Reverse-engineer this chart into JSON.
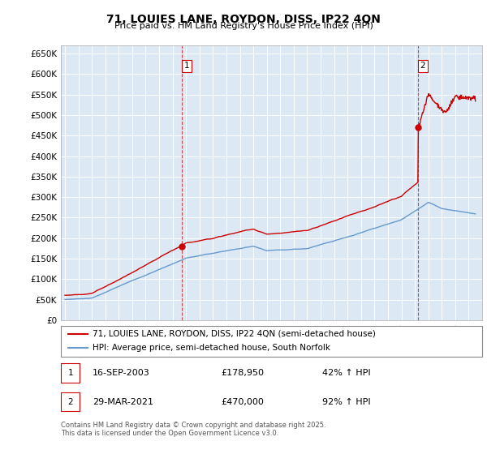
{
  "title": "71, LOUIES LANE, ROYDON, DISS, IP22 4QN",
  "subtitle": "Price paid vs. HM Land Registry's House Price Index (HPI)",
  "legend_property": "71, LOUIES LANE, ROYDON, DISS, IP22 4QN (semi-detached house)",
  "legend_hpi": "HPI: Average price, semi-detached house, South Norfolk",
  "annotation1_date": "16-SEP-2003",
  "annotation1_price": "£178,950",
  "annotation1_hpi": "42% ↑ HPI",
  "annotation2_date": "29-MAR-2021",
  "annotation2_price": "£470,000",
  "annotation2_hpi": "92% ↑ HPI",
  "footer": "Contains HM Land Registry data © Crown copyright and database right 2025.\nThis data is licensed under the Open Government Licence v3.0.",
  "property_color": "#cc0000",
  "hpi_color": "#6699cc",
  "vline_color": "#cc0000",
  "chart_bg_color": "#dce9f5",
  "background_color": "#ffffff",
  "ylim": [
    0,
    670000
  ],
  "yticks": [
    0,
    50000,
    100000,
    150000,
    200000,
    250000,
    300000,
    350000,
    400000,
    450000,
    500000,
    550000,
    600000,
    650000
  ],
  "sale1_x": 2003.71,
  "sale1_y": 178950,
  "sale2_x": 2021.24,
  "sale2_y": 470000,
  "xmin": 1995,
  "xmax": 2025.5
}
